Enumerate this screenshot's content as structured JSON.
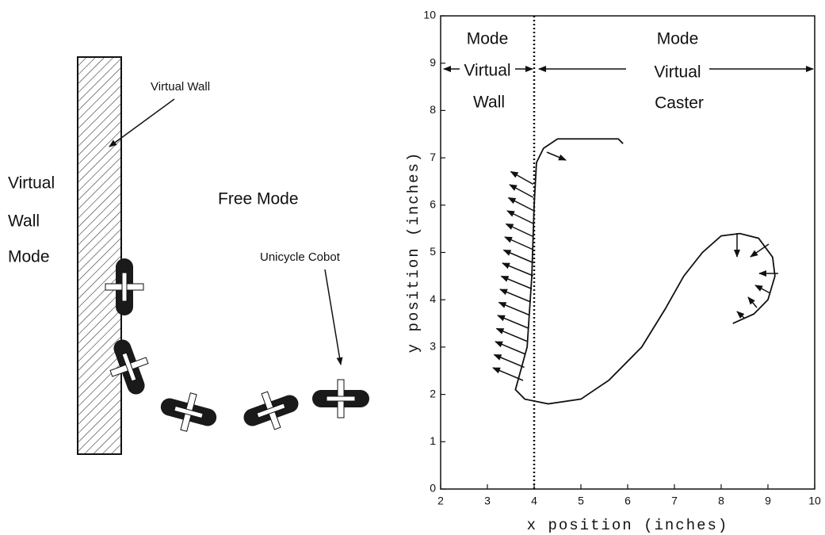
{
  "diagram": {
    "wall_label": "Virtual Wall",
    "mode_label": [
      "Virtual",
      "Wall",
      "Mode"
    ],
    "free_label": "Free Mode",
    "cobot_label": "Unicycle Cobot"
  },
  "chart_data": {
    "type": "line",
    "xlabel": "x position (inches)",
    "ylabel": "y position (inches)",
    "xlim": [
      2,
      10
    ],
    "ylim": [
      0,
      10
    ],
    "xticks": [
      2,
      3,
      4,
      5,
      6,
      7,
      8,
      9,
      10
    ],
    "yticks": [
      0,
      1,
      2,
      3,
      4,
      5,
      6,
      7,
      8,
      9,
      10
    ],
    "boundary_x": 4,
    "left_region": [
      "Mode",
      "Virtual",
      "Wall"
    ],
    "right_region": [
      "Mode",
      "Virtual",
      "Caster"
    ],
    "series": [
      {
        "color": "#111",
        "x": [
          5.9,
          5.8,
          4.5,
          4.2,
          4.05,
          4.0,
          3.95,
          3.85,
          3.6,
          3.8,
          4.3,
          5.0,
          5.6,
          6.3,
          6.8,
          7.2,
          7.6,
          8.0,
          8.4,
          8.8,
          9.1,
          9.15,
          9.0,
          8.7,
          8.25
        ],
        "values": [
          7.3,
          7.4,
          7.4,
          7.2,
          6.9,
          6.0,
          4.5,
          3.0,
          2.1,
          1.9,
          1.8,
          1.9,
          2.3,
          3.0,
          3.8,
          4.5,
          5.0,
          5.35,
          5.4,
          5.3,
          4.9,
          4.5,
          4.0,
          3.7,
          3.5
        ]
      }
    ]
  }
}
